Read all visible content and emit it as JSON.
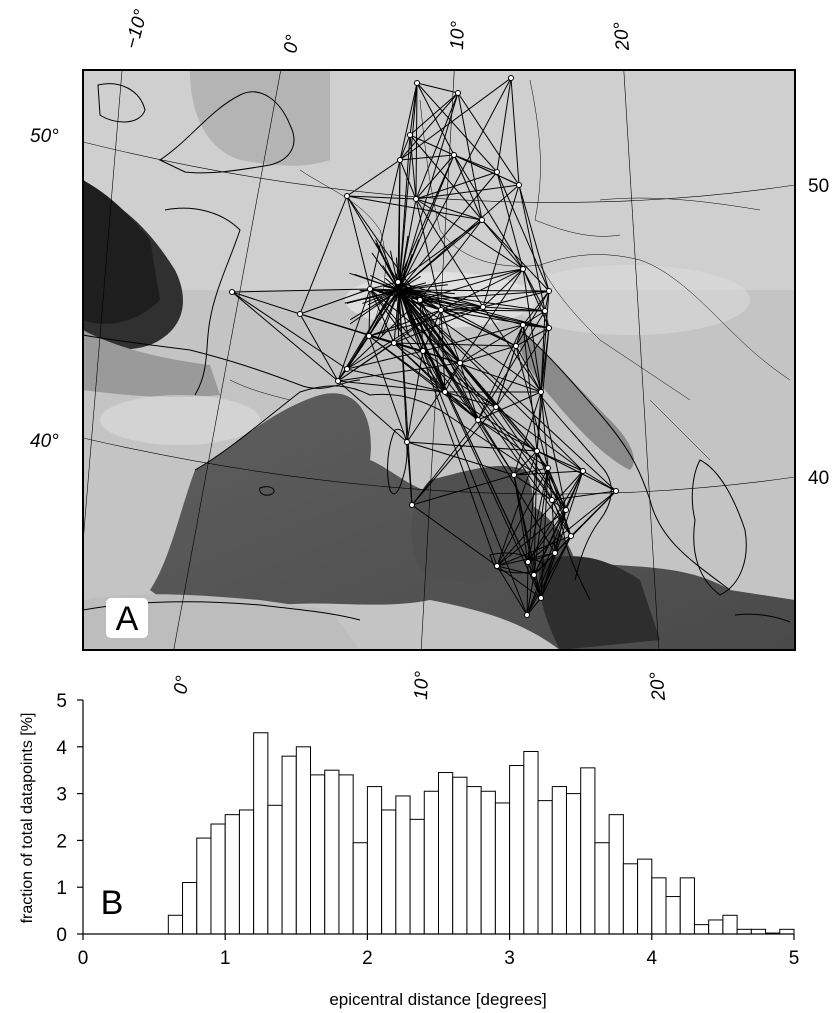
{
  "colors": {
    "frame": "#000000",
    "map_land": "#c2c2c2",
    "map_sea": "#6a6a6a",
    "map_deep": "#2a2a2a",
    "bar_fill": "#ffffff",
    "bar_stroke": "#000000",
    "panel_label_bg": "#ffffff"
  },
  "icons": {
    "station": "open-circle-marker"
  },
  "map_panel": {
    "label": "A",
    "top_lon_labels": [
      "−10°",
      "0°",
      "10°",
      "20°"
    ],
    "bottom_lon_labels": [
      "0°",
      "10°",
      "20°"
    ],
    "left_lat_labels": [
      "50°",
      "40°"
    ],
    "right_lat_labels": [
      "50",
      "40"
    ]
  },
  "chart_data": {
    "type": "bar",
    "panel_label": "B",
    "xlabel": "epicentral distance [degrees]",
    "ylabel": "fraction of total datapoints [%]",
    "xlim": [
      0,
      5
    ],
    "ylim": [
      0,
      5
    ],
    "xticks": [
      "0",
      "1",
      "2",
      "3",
      "4",
      "5"
    ],
    "yticks": [
      "0",
      "1",
      "2",
      "3",
      "4",
      "5"
    ],
    "bin_width": 0.1,
    "bin_starts": [
      0.6,
      0.7,
      0.8,
      0.9,
      1.0,
      1.1,
      1.2,
      1.3,
      1.4,
      1.5,
      1.6,
      1.7,
      1.8,
      1.9,
      2.0,
      2.1,
      2.2,
      2.3,
      2.4,
      2.5,
      2.6,
      2.7,
      2.8,
      2.9,
      3.0,
      3.1,
      3.2,
      3.3,
      3.4,
      3.5,
      3.6,
      3.7,
      3.8,
      3.9,
      4.0,
      4.1,
      4.2,
      4.3,
      4.4,
      4.5,
      4.6,
      4.7,
      4.8,
      4.9
    ],
    "values": [
      0.4,
      1.1,
      2.05,
      2.35,
      2.55,
      2.65,
      4.3,
      2.75,
      3.8,
      4.0,
      3.4,
      3.5,
      3.4,
      1.95,
      3.15,
      2.65,
      2.95,
      2.45,
      3.05,
      3.45,
      3.35,
      3.15,
      3.05,
      2.8,
      3.6,
      3.9,
      2.85,
      3.15,
      3.0,
      3.55,
      1.95,
      2.55,
      1.5,
      1.6,
      1.2,
      0.8,
      1.2,
      0.2,
      0.3,
      0.4,
      0.1,
      0.1,
      0.02,
      0.1
    ],
    "grid": false
  }
}
